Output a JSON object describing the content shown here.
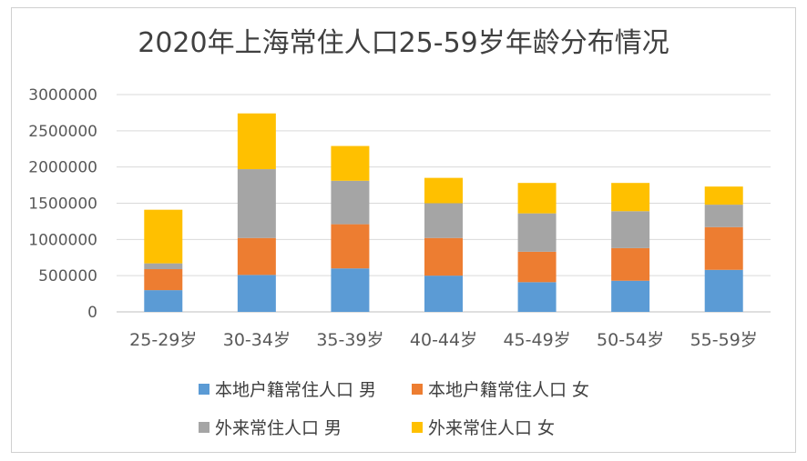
{
  "chart_data": {
    "type": "bar",
    "stacked": true,
    "title": "2020年上海常住人口25-59岁年龄分布情况",
    "xlabel": "",
    "ylabel": "",
    "categories": [
      "25-29岁",
      "30-34岁",
      "35-39岁",
      "40-44岁",
      "45-49岁",
      "50-54岁",
      "55-59岁"
    ],
    "ylim": [
      0,
      3000000
    ],
    "yticks": [
      "0",
      "500000",
      "1000000",
      "1500000",
      "2000000",
      "2500000",
      "3000000"
    ],
    "yticks_values": [
      0,
      500000,
      1000000,
      1500000,
      2000000,
      2500000,
      3000000
    ],
    "grid": true,
    "legend_position": "bottom",
    "series": [
      {
        "name": "本地户籍常住人口 男",
        "color": "#5B9BD5",
        "values": [
          300000,
          510000,
          600000,
          500000,
          410000,
          430000,
          580000
        ]
      },
      {
        "name": "本地户籍常住人口 女",
        "color": "#ED7D31",
        "values": [
          290000,
          510000,
          610000,
          520000,
          420000,
          450000,
          590000
        ]
      },
      {
        "name": "外来常住人口 男",
        "color": "#A5A5A5",
        "values": [
          80000,
          950000,
          600000,
          480000,
          530000,
          510000,
          310000
        ]
      },
      {
        "name": "外来常住人口 女",
        "color": "#FFC000",
        "values": [
          740000,
          770000,
          480000,
          350000,
          420000,
          390000,
          250000
        ]
      }
    ]
  }
}
